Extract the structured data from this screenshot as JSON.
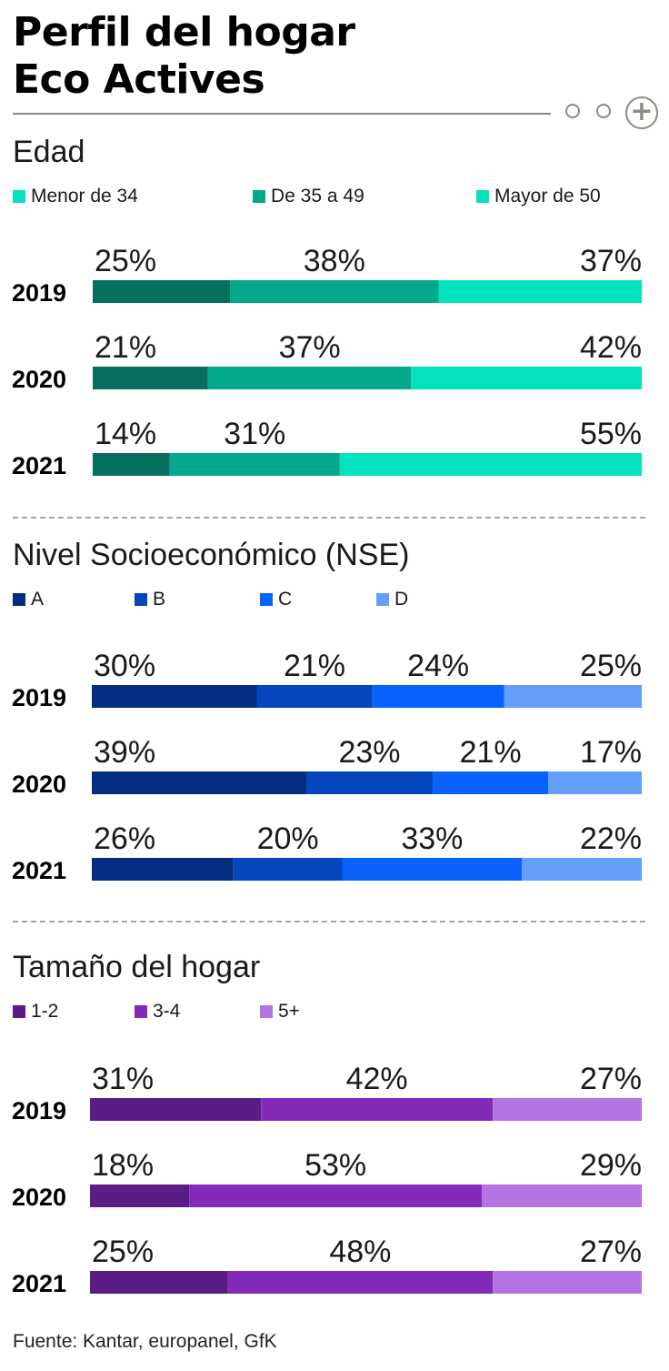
{
  "header": {
    "title_line1": "Perfil del hogar",
    "title_line2": "Eco Actives",
    "expand_icon": "plus-circle-icon"
  },
  "source": "Fuente: Kantar, europanel, GfK",
  "chart_data": [
    {
      "type": "bar",
      "orientation": "horizontal",
      "stacked": true,
      "title": "Edad",
      "categories": [
        "2019",
        "2020",
        "2021"
      ],
      "series": [
        {
          "name": "Menor de 34",
          "color": "#04705d",
          "values": [
            25,
            21,
            14
          ],
          "labels": [
            "25%",
            "21%",
            "14%"
          ]
        },
        {
          "name": "De 35 a 49",
          "color": "#03a98a",
          "values": [
            38,
            37,
            31
          ],
          "labels": [
            "38%",
            "37%",
            "31%"
          ]
        },
        {
          "name": "Mayor de 50",
          "color": "#04e2bd",
          "values": [
            37,
            42,
            55
          ],
          "labels": [
            "37%",
            "42%",
            "55%"
          ]
        }
      ],
      "legend_swatch_colors": [
        "#04e2bd",
        "#03a98a",
        "#04e2bd"
      ],
      "legend_position": "top",
      "xlim": [
        0,
        100
      ]
    },
    {
      "type": "bar",
      "orientation": "horizontal",
      "stacked": true,
      "title": "Nivel Socioeconómico (NSE)",
      "categories": [
        "2019",
        "2020",
        "2021"
      ],
      "series": [
        {
          "name": "A",
          "color": "#032d7f",
          "values": [
            30,
            39,
            26
          ],
          "labels": [
            "30%",
            "39%",
            "26%"
          ]
        },
        {
          "name": "B",
          "color": "#0546bf",
          "values": [
            21,
            23,
            20
          ],
          "labels": [
            "21%",
            "23%",
            "20%"
          ]
        },
        {
          "name": "C",
          "color": "#0763fb",
          "values": [
            24,
            21,
            33
          ],
          "labels": [
            "24%",
            "21%",
            "33%"
          ]
        },
        {
          "name": "D",
          "color": "#649ffc",
          "values": [
            25,
            17,
            22
          ],
          "labels": [
            "25%",
            "17%",
            "22%"
          ]
        }
      ],
      "legend_position": "top",
      "xlim": [
        0,
        100
      ]
    },
    {
      "type": "bar",
      "orientation": "horizontal",
      "stacked": true,
      "title": "Tamaño del hogar",
      "categories": [
        "2019",
        "2020",
        "2021"
      ],
      "series": [
        {
          "name": "1-2",
          "color": "#5c1c86",
          "values": [
            31,
            18,
            25
          ],
          "labels": [
            "31%",
            "18%",
            "25%"
          ]
        },
        {
          "name": "3-4",
          "color": "#822bb8",
          "values": [
            42,
            53,
            48
          ],
          "labels": [
            "42%",
            "53%",
            "48%"
          ]
        },
        {
          "name": "5+",
          "color": "#b574e2",
          "values": [
            27,
            29,
            27
          ],
          "labels": [
            "27%",
            "29%",
            "27%"
          ]
        }
      ],
      "legend_position": "top",
      "xlim": [
        0,
        100
      ]
    }
  ]
}
